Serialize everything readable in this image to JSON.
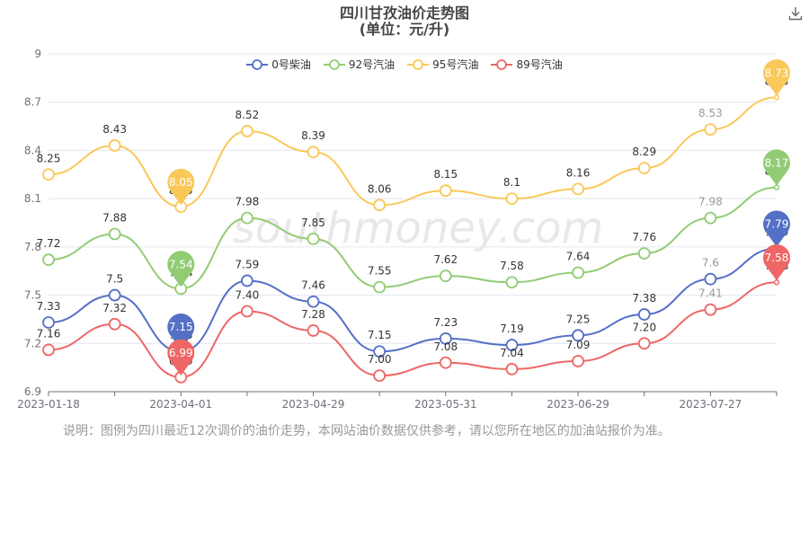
{
  "title": "四川甘孜油价走势图",
  "subtitle": "(单位：元/升)",
  "download_icon": "download-icon",
  "watermark": "southmoney.com",
  "note": "说明：图例为四川最近12次调价的油价走势，本网站油价数据仅供参考，请以您所在地区的加油站报价为准。",
  "chart_data": {
    "type": "line",
    "title": "四川甘孜油价走势图",
    "subtitle": "(单位：元/升)",
    "xlabel": "",
    "ylabel": "",
    "ylim": [
      6.9,
      9
    ],
    "yticks": [
      "6.9",
      "7.2",
      "7.5",
      "7.8",
      "8.1",
      "8.4",
      "8.7",
      "9"
    ],
    "xticks": [
      "2023-01-18",
      "2023-04-01",
      "2023-04-29",
      "2023-05-31",
      "2023-06-29",
      "2023-07-27"
    ],
    "categories": [
      "2023-01-18",
      "",
      "2023-04-01",
      "",
      "2023-04-29",
      "",
      "2023-05-31",
      "",
      "2023-06-29",
      "",
      "2023-07-27",
      ""
    ],
    "legend_position": "top-center",
    "grid": true,
    "series": [
      {
        "name": "0号柴油",
        "color": "#5470c6",
        "values": [
          7.33,
          7.5,
          7.15,
          7.59,
          7.46,
          7.15,
          7.23,
          7.19,
          7.25,
          7.38,
          7.6,
          7.79
        ],
        "labels": [
          "7.33",
          "7.5",
          "7.15",
          "7.59",
          "7.46",
          "7.15",
          "7.23",
          "7.19",
          "7.25",
          "7.38",
          "7.6",
          "7.79"
        ]
      },
      {
        "name": "92号汽油",
        "color": "#91cc75",
        "values": [
          7.72,
          7.88,
          7.54,
          7.98,
          7.85,
          7.55,
          7.62,
          7.58,
          7.64,
          7.76,
          7.98,
          8.17
        ],
        "labels": [
          "7.72",
          "7.88",
          "7.54",
          "7.98",
          "7.85",
          "7.55",
          "7.62",
          "7.58",
          "7.64",
          "7.76",
          "7.98",
          "8.17"
        ]
      },
      {
        "name": "95号汽油",
        "color": "#fac858",
        "values": [
          8.25,
          8.43,
          8.05,
          8.52,
          8.39,
          8.06,
          8.15,
          8.1,
          8.16,
          8.29,
          8.53,
          8.73
        ],
        "labels": [
          "8.25",
          "8.43",
          "8.05",
          "8.52",
          "8.39",
          "8.06",
          "8.15",
          "8.1",
          "8.16",
          "8.29",
          "8.53",
          "8.73"
        ]
      },
      {
        "name": "89号汽油",
        "color": "#ee6666",
        "values": [
          7.16,
          7.32,
          6.99,
          7.4,
          7.28,
          7.0,
          7.08,
          7.04,
          7.09,
          7.2,
          7.41,
          7.58
        ],
        "labels": [
          "7.16",
          "7.32",
          "6.99",
          "7.40",
          "7.28",
          "7.00",
          "7.08",
          "7.04",
          "7.09",
          "7.20",
          "7.41",
          "7.58"
        ]
      }
    ],
    "markers": [
      {
        "series": 0,
        "point": 2,
        "label": "7.15"
      },
      {
        "series": 1,
        "point": 2,
        "label": "7.54"
      },
      {
        "series": 2,
        "point": 2,
        "label": "8.05"
      },
      {
        "series": 3,
        "point": 2,
        "label": "6.99"
      },
      {
        "series": 0,
        "point": 11,
        "label": "7.79"
      },
      {
        "series": 1,
        "point": 11,
        "label": "8.17"
      },
      {
        "series": 2,
        "point": 11,
        "label": "8.73"
      },
      {
        "series": 3,
        "point": 11,
        "label": "7.58"
      }
    ]
  }
}
